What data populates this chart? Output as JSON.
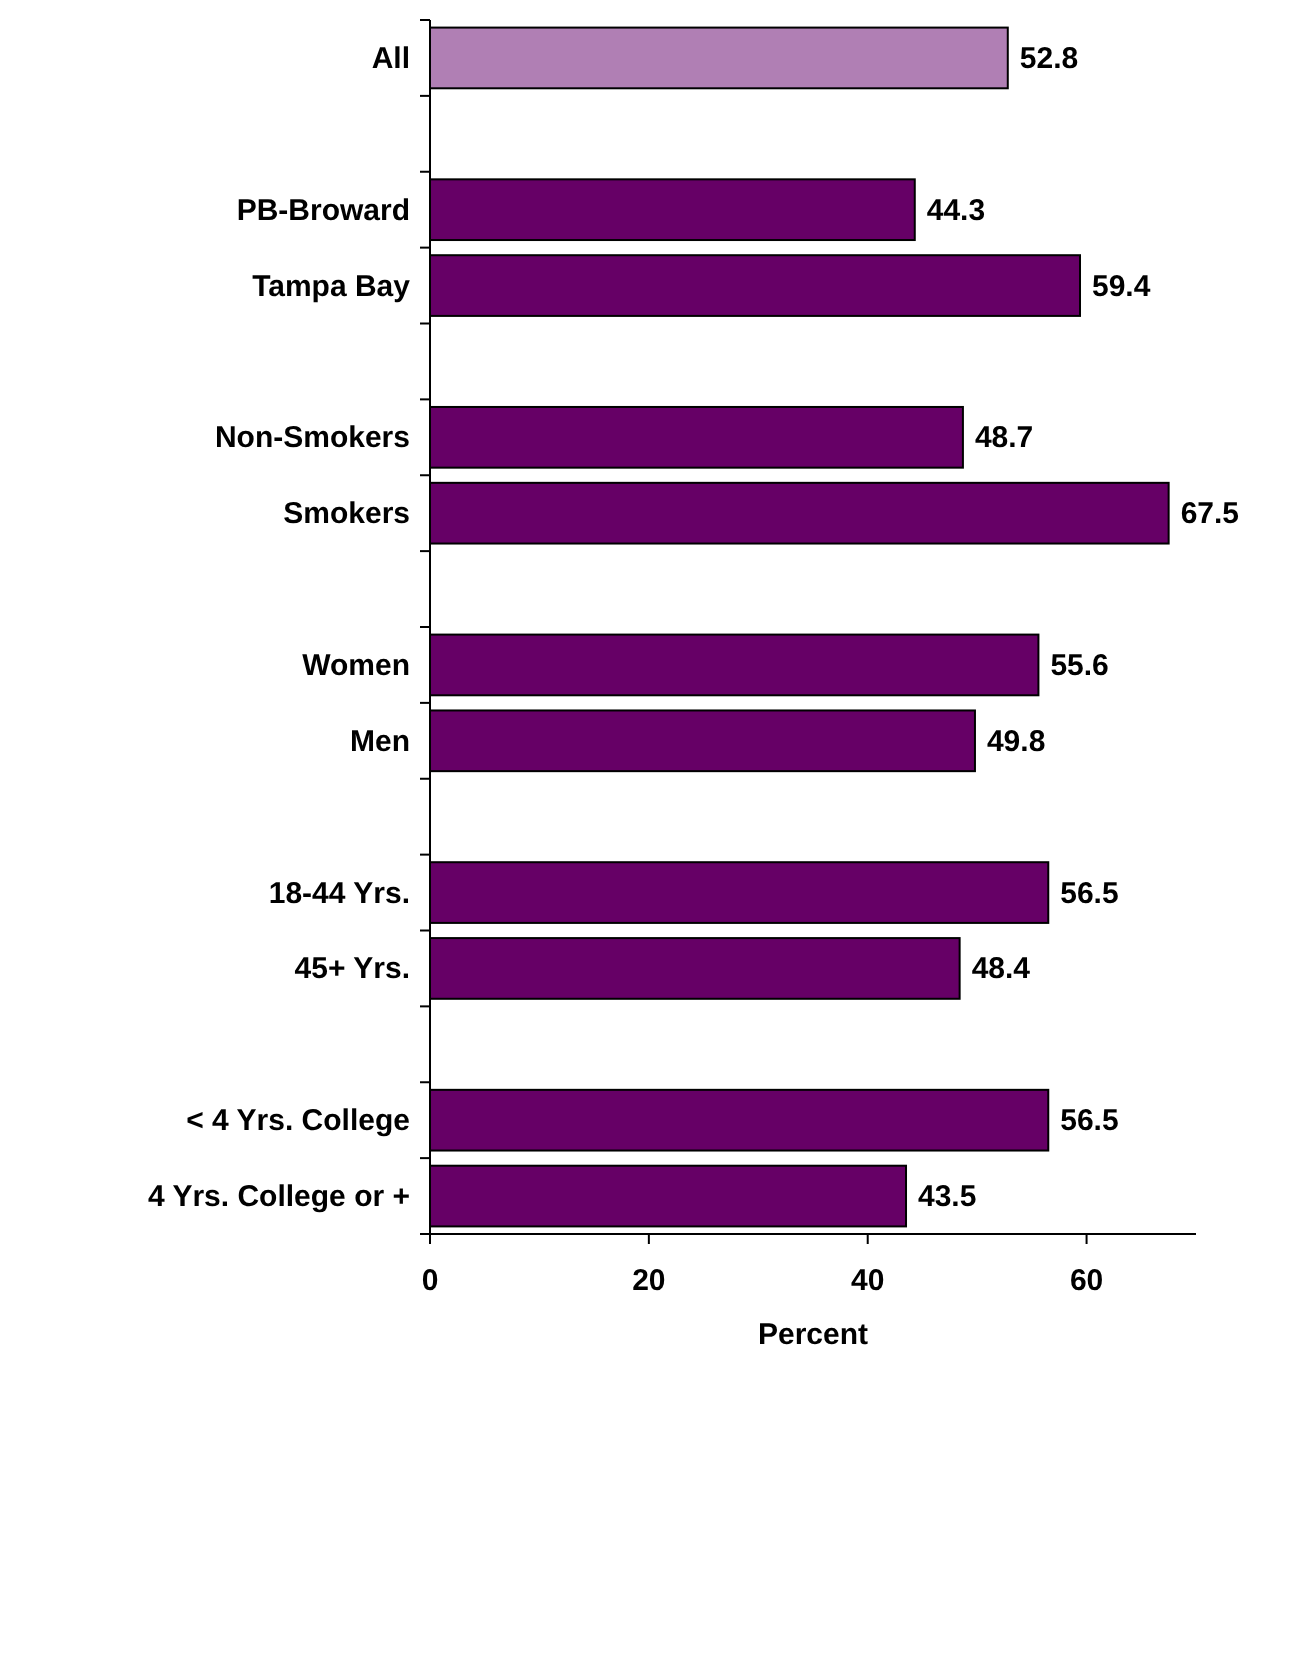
{
  "chart_data": {
    "type": "bar",
    "orientation": "horizontal",
    "xlabel": "Percent",
    "categories": [
      "All",
      null,
      "PB-Broward",
      "Tampa Bay",
      null,
      "Non-Smokers",
      "Smokers",
      null,
      "Women",
      "Men",
      null,
      "18-44 Yrs.",
      "45+ Yrs.",
      null,
      "< 4 Yrs. College",
      "4 Yrs. College or +"
    ],
    "values": [
      52.8,
      null,
      44.3,
      59.4,
      null,
      48.7,
      67.5,
      null,
      55.6,
      49.8,
      null,
      56.5,
      48.4,
      null,
      56.5,
      43.5
    ],
    "colors": [
      "#b07fb4",
      null,
      "#660066",
      "#660066",
      null,
      "#660066",
      "#660066",
      null,
      "#660066",
      "#660066",
      null,
      "#660066",
      "#660066",
      null,
      "#660066",
      "#660066"
    ],
    "xlim": [
      0,
      70
    ],
    "xticks": [
      0,
      20,
      40,
      60
    ],
    "data_labels": true
  }
}
